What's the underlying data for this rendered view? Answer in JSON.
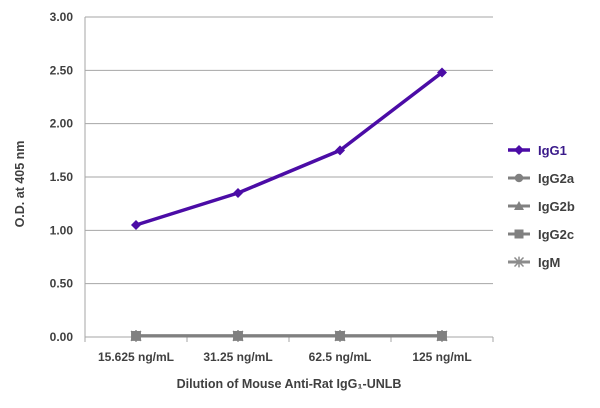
{
  "chart_data": {
    "type": "line",
    "categories": [
      "15.625 ng/mL",
      "31.25 ng/mL",
      "62.5 ng/mL",
      "125 ng/mL"
    ],
    "series": [
      {
        "name": "IgG1",
        "values": [
          1.05,
          1.35,
          1.75,
          2.48
        ],
        "color": "#4b0ca6",
        "marker": "diamond"
      },
      {
        "name": "IgG2a",
        "values": [
          0.01,
          0.01,
          0.01,
          0.01
        ],
        "color": "#808080",
        "marker": "circle"
      },
      {
        "name": "IgG2b",
        "values": [
          0.01,
          0.01,
          0.01,
          0.01
        ],
        "color": "#808080",
        "marker": "triangle"
      },
      {
        "name": "IgG2c",
        "values": [
          0.01,
          0.01,
          0.01,
          0.01
        ],
        "color": "#808080",
        "marker": "square"
      },
      {
        "name": "IgM",
        "values": [
          0.01,
          0.01,
          0.01,
          0.01
        ],
        "color": "#8c8c8c",
        "marker": "star"
      }
    ],
    "title": "",
    "xlabel": "Dilution of Mouse Anti-Rat IgG₁-UNLB",
    "ylabel": "O.D. at 405 nm",
    "ylim": [
      0,
      3
    ],
    "yticks": [
      "0.00",
      "0.50",
      "1.00",
      "1.50",
      "2.00",
      "2.50",
      "3.00"
    ],
    "grid": "horizontal",
    "legend": "right"
  }
}
